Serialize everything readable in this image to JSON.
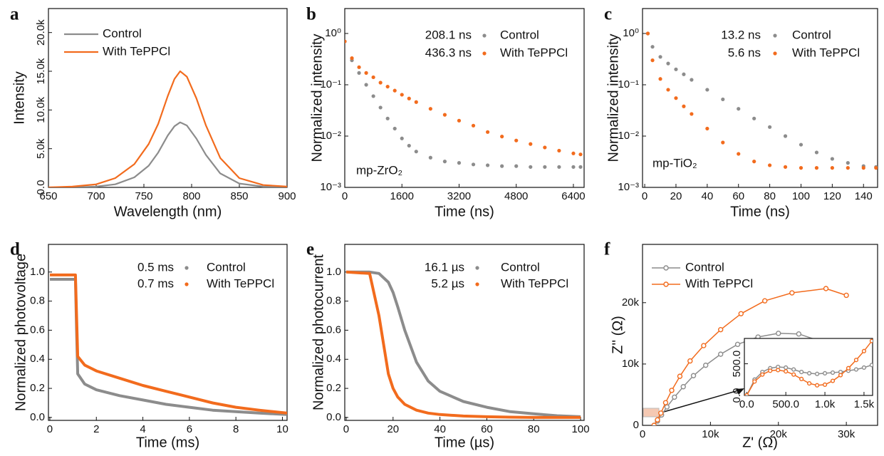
{
  "chart_data": [
    {
      "type": "line",
      "label": "a",
      "xlabel": "Wavelength (nm)",
      "ylabel": "Intensity",
      "x": [
        650,
        675,
        700,
        720,
        740,
        755,
        765,
        775,
        782,
        788,
        795,
        805,
        815,
        830,
        850,
        875,
        900
      ],
      "series": [
        {
          "name": "Control",
          "color": "#8c8c8c",
          "values": [
            0,
            0,
            100,
            400,
            1300,
            2800,
            4500,
            6700,
            7900,
            8400,
            8000,
            6300,
            4200,
            1800,
            500,
            100,
            0
          ]
        },
        {
          "name": "With TePPCl",
          "color": "#f26b1d",
          "values": [
            0,
            100,
            400,
            1200,
            3000,
            5600,
            8200,
            11800,
            14000,
            15000,
            14300,
            11500,
            8000,
            3800,
            1200,
            300,
            100
          ]
        }
      ],
      "xlim": [
        650,
        900
      ],
      "xticks": [
        650,
        700,
        750,
        800,
        850,
        900
      ],
      "ylim": [
        0,
        23100
      ],
      "yticks": [
        {
          "value": 0,
          "label": "0.0"
        },
        {
          "value": 5000,
          "label": "5.0k"
        },
        {
          "value": 10000,
          "label": "10.0k"
        },
        {
          "value": 15000,
          "label": "15.0k"
        },
        {
          "value": 20000,
          "label": "20.0k"
        }
      ]
    },
    {
      "type": "scatter",
      "label": "b",
      "xlabel": "Time (ns)",
      "ylabel": "Normalized intensity",
      "annotation": "mp-ZrO₂",
      "ylog": true,
      "x": [
        0,
        200,
        400,
        600,
        800,
        1000,
        1200,
        1400,
        1600,
        1800,
        2000,
        2400,
        2800,
        3200,
        3600,
        4000,
        4400,
        4800,
        5200,
        5600,
        6000,
        6400,
        6600
      ],
      "series": [
        {
          "name": "Control",
          "annotation": "208.1 ns",
          "color": "#8c8c8c",
          "values": [
            0.7,
            0.3,
            0.17,
            0.1,
            0.06,
            0.036,
            0.022,
            0.014,
            0.009,
            0.0065,
            0.005,
            0.0038,
            0.0032,
            0.003,
            0.0028,
            0.0027,
            0.0026,
            0.0026,
            0.0025,
            0.0025,
            0.0025,
            0.0025,
            0.0025
          ]
        },
        {
          "name": "With TePPCl",
          "annotation": "436.3 ns",
          "color": "#f26b1d",
          "values": [
            0.7,
            0.33,
            0.22,
            0.17,
            0.14,
            0.11,
            0.092,
            0.077,
            0.064,
            0.054,
            0.046,
            0.034,
            0.026,
            0.02,
            0.016,
            0.012,
            0.0098,
            0.0082,
            0.007,
            0.006,
            0.0052,
            0.0046,
            0.0044
          ]
        }
      ],
      "xlim": [
        0,
        6700
      ],
      "xticks": [
        0,
        1600,
        3200,
        4800,
        6400
      ],
      "ylim": [
        0.001,
        3.06
      ],
      "yticks": [
        {
          "value": 0.001,
          "label": "10⁻³"
        },
        {
          "value": 0.01,
          "label": "10⁻²"
        },
        {
          "value": 0.1,
          "label": "10⁻¹"
        },
        {
          "value": 1,
          "label": "10⁰"
        }
      ]
    },
    {
      "type": "scatter",
      "label": "c",
      "xlabel": "Time (ns)",
      "ylabel": "Normalized intensity",
      "annotation": "mp-TiO₂",
      "ylog": true,
      "x": [
        2,
        5,
        10,
        15,
        20,
        25,
        30,
        40,
        50,
        60,
        70,
        80,
        90,
        100,
        110,
        120,
        130,
        140,
        148
      ],
      "series": [
        {
          "name": "Control",
          "annotation": "13.2 ns",
          "color": "#8c8c8c",
          "values": [
            1.0,
            0.55,
            0.35,
            0.26,
            0.2,
            0.16,
            0.125,
            0.08,
            0.052,
            0.034,
            0.022,
            0.015,
            0.01,
            0.0068,
            0.0048,
            0.0036,
            0.003,
            0.0026,
            0.0025
          ]
        },
        {
          "name": "With TePPCl",
          "annotation": "5.6 ns",
          "color": "#f26b1d",
          "values": [
            1.0,
            0.3,
            0.13,
            0.08,
            0.055,
            0.038,
            0.027,
            0.014,
            0.0075,
            0.0045,
            0.0032,
            0.0027,
            0.0025,
            0.0024,
            0.0024,
            0.0024,
            0.0024,
            0.0024,
            0.0024
          ]
        }
      ],
      "xlim": [
        -1.4,
        149
      ],
      "xticks": [
        0,
        20,
        40,
        60,
        80,
        100,
        120,
        140
      ],
      "ylim": [
        0.001,
        3.06
      ],
      "yticks": [
        {
          "value": 0.001,
          "label": "10⁻³"
        },
        {
          "value": 0.01,
          "label": "10⁻²"
        },
        {
          "value": 0.1,
          "label": "10⁻¹"
        },
        {
          "value": 1,
          "label": "10⁰"
        }
      ]
    },
    {
      "type": "line",
      "label": "d",
      "xlabel": "Time (ms)",
      "ylabel": "Normalized photovoltage",
      "x": [
        0,
        1.1,
        1.15,
        1.2,
        1.5,
        2,
        3,
        4,
        5,
        6,
        7,
        8,
        9,
        10.2
      ],
      "series": [
        {
          "name": "Control",
          "annotation": "0.5 ms",
          "color": "#8c8c8c",
          "values": [
            0.95,
            0.95,
            0.6,
            0.3,
            0.23,
            0.19,
            0.15,
            0.12,
            0.09,
            0.07,
            0.05,
            0.04,
            0.03,
            0.02
          ]
        },
        {
          "name": "With TePPCl",
          "annotation": "0.7 ms",
          "color": "#f26b1d",
          "values": [
            0.98,
            0.98,
            0.7,
            0.42,
            0.36,
            0.32,
            0.27,
            0.22,
            0.18,
            0.14,
            0.1,
            0.07,
            0.05,
            0.03
          ]
        }
      ],
      "xlim": [
        -0.06,
        10.2
      ],
      "xticks": [
        0,
        2,
        4,
        6,
        8,
        10
      ],
      "ylim": [
        -0.02,
        1.19
      ],
      "yticks": [
        {
          "value": 0,
          "label": "0.0"
        },
        0.2,
        0.4,
        0.6,
        0.8,
        {
          "value": 1,
          "label": "1.0"
        }
      ]
    },
    {
      "type": "line",
      "label": "e",
      "xlabel": "Time (µs)",
      "ylabel": "Normalized photocurrent",
      "x": [
        0,
        10,
        14,
        18,
        20,
        22,
        25,
        30,
        35,
        40,
        50,
        60,
        70,
        80,
        90,
        100
      ],
      "series": [
        {
          "name": "Control",
          "annotation": "16.1 µs",
          "color": "#8c8c8c",
          "values": [
            1,
            1,
            0.99,
            0.93,
            0.86,
            0.76,
            0.6,
            0.38,
            0.25,
            0.18,
            0.11,
            0.07,
            0.04,
            0.025,
            0.012,
            0.005
          ]
        },
        {
          "name": "With TePPCl",
          "annotation": "5.2 µs",
          "color": "#f26b1d",
          "values": [
            1,
            0.99,
            0.7,
            0.3,
            0.2,
            0.14,
            0.09,
            0.05,
            0.03,
            0.02,
            0.01,
            0.005,
            0.002,
            0,
            0,
            0
          ]
        }
      ],
      "xlim": [
        -0.6,
        101.5
      ],
      "xticks": [
        0,
        20,
        40,
        60,
        80,
        100
      ],
      "ylim": [
        -0.02,
        1.19
      ],
      "yticks": [
        {
          "value": 0,
          "label": "0.0"
        },
        0.2,
        0.4,
        0.6,
        0.8,
        {
          "value": 1,
          "label": "1.0"
        }
      ]
    },
    {
      "type": "line",
      "label": "f",
      "xlabel": "Z' (Ω)",
      "ylabel": "Z'' (Ω)",
      "markers": true,
      "series": [
        {
          "name": "Control",
          "color": "#8c8c8c",
          "x": [
            1700,
            2200,
            2800,
            3600,
            4700,
            6000,
            7500,
            9300,
            11500,
            14000,
            17000,
            20000,
            23000,
            27000
          ],
          "values": [
            0,
            700,
            1700,
            3000,
            4600,
            6300,
            8100,
            9800,
            11600,
            13200,
            14400,
            15000,
            14900,
            13400
          ]
        },
        {
          "name": "With TePPCl",
          "color": "#f26b1d",
          "x": [
            1700,
            2200,
            2700,
            3400,
            4300,
            5500,
            7000,
            9000,
            11500,
            14500,
            18000,
            22000,
            27000,
            30000
          ],
          "values": [
            0,
            900,
            2000,
            3700,
            5700,
            8000,
            10500,
            13000,
            15600,
            18200,
            20300,
            21600,
            22300,
            21200
          ]
        }
      ],
      "xlim": [
        0,
        34600
      ],
      "xticks": [
        0,
        {
          "value": 10000,
          "label": "10k"
        },
        {
          "value": 20000,
          "label": "20k"
        },
        {
          "value": 30000,
          "label": "30k"
        }
      ],
      "ylim": [
        0,
        29500
      ],
      "yticks": [
        0,
        {
          "value": 10000,
          "label": "10k"
        },
        {
          "value": 20000,
          "label": "20k"
        }
      ]
    },
    {
      "type": "line",
      "markers": true,
      "x": [
        0,
        100,
        200,
        300,
        400,
        500,
        600,
        700,
        800,
        900,
        1000,
        1100,
        1200,
        1300,
        1400,
        1500,
        1600
      ],
      "series": [
        {
          "color": "#8c8c8c",
          "values": [
            0,
            250,
            370,
            430,
            450,
            440,
            410,
            370,
            350,
            340,
            350,
            360,
            370,
            390,
            410,
            440,
            480
          ]
        },
        {
          "color": "#f26b1d",
          "values": [
            0,
            220,
            330,
            390,
            400,
            380,
            330,
            260,
            190,
            160,
            170,
            230,
            320,
            430,
            560,
            700,
            860
          ]
        }
      ],
      "xlim": [
        -30,
        1610
      ],
      "xticks": [
        {
          "value": 0,
          "label": "0.0"
        },
        {
          "value": 500,
          "label": "500.0"
        },
        {
          "value": 1000,
          "label": "1.0k"
        },
        {
          "value": 1500,
          "label": "1.5k"
        }
      ],
      "ylim": [
        0,
        900
      ],
      "yticks": [
        {
          "value": 0,
          "label": "0.0"
        },
        {
          "value": 500,
          "label": "500.0"
        }
      ]
    }
  ]
}
